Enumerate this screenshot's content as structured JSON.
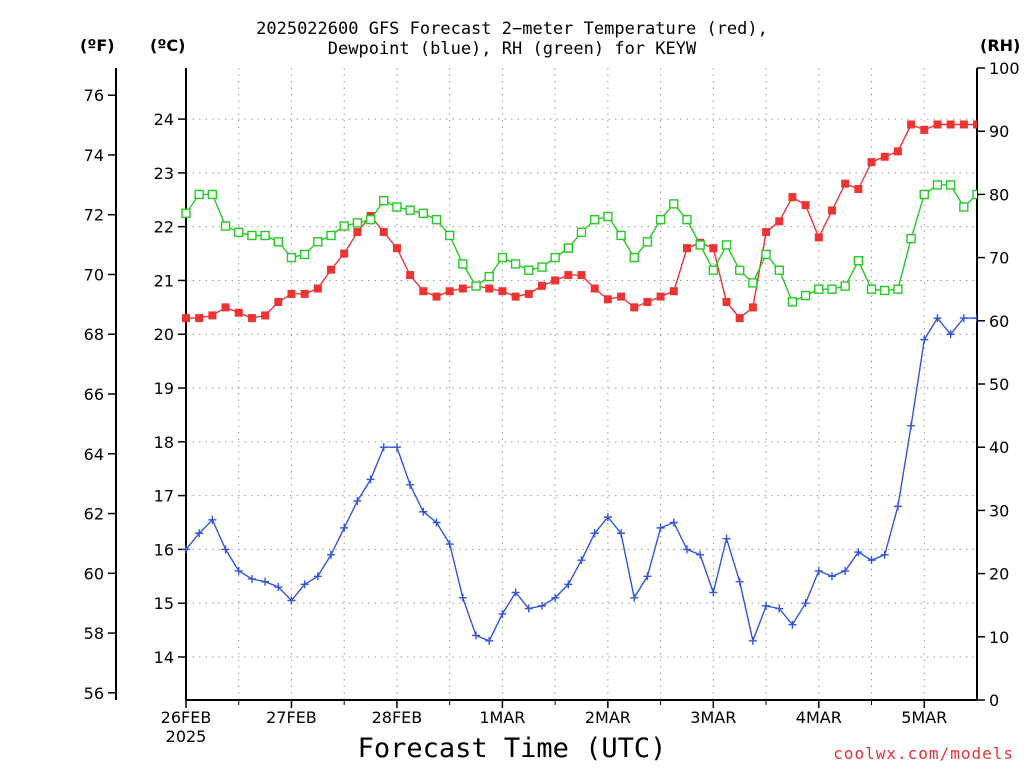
{
  "title_line1": "2025022600 GFS Forecast 2−meter Temperature (red),",
  "title_line2": "Dewpoint (blue), RH (green) for KEYW",
  "unit_f": "(ºF)",
  "unit_c": "(ºC)",
  "unit_rh": "(RH)",
  "x_label": "Forecast Time (UTC)",
  "credit": "coolwx.com/models",
  "colors": {
    "temperature": "#ee3333",
    "dewpoint": "#3355dd",
    "rh": "#22cc22",
    "grid": "#999999"
  },
  "chart_data": {
    "type": "line",
    "x_unit": "forecast hours since 2025-02-26 00 UTC",
    "x_ticks": [
      {
        "hour": 0,
        "label": "26FEB",
        "sub": "2025"
      },
      {
        "hour": 24,
        "label": "27FEB"
      },
      {
        "hour": 48,
        "label": "28FEB"
      },
      {
        "hour": 72,
        "label": "1MAR"
      },
      {
        "hour": 96,
        "label": "2MAR"
      },
      {
        "hour": 120,
        "label": "3MAR"
      },
      {
        "hour": 144,
        "label": "4MAR"
      },
      {
        "hour": 168,
        "label": "5MAR"
      }
    ],
    "xlim": [
      0,
      180
    ],
    "y_left_c": {
      "lim": [
        13.2,
        24.95
      ],
      "ticks": [
        14,
        15,
        16,
        17,
        18,
        19,
        20,
        21,
        22,
        23,
        24
      ]
    },
    "y_left_f": {
      "ticks": [
        56,
        58,
        60,
        62,
        64,
        66,
        68,
        70,
        72,
        74,
        76
      ]
    },
    "y_right_rh": {
      "lim": [
        0,
        100
      ],
      "ticks": [
        0,
        10,
        20,
        30,
        40,
        50,
        60,
        70,
        80,
        90,
        100
      ]
    },
    "series": [
      {
        "name": "Temperature",
        "axis": "c",
        "marker": "filled-square",
        "color": "#ee3333",
        "x": [
          0,
          3,
          6,
          9,
          12,
          15,
          18,
          21,
          24,
          27,
          30,
          33,
          36,
          39,
          42,
          45,
          48,
          51,
          54,
          57,
          60,
          63,
          66,
          69,
          72,
          75,
          78,
          81,
          84,
          87,
          90,
          93,
          96,
          99,
          102,
          105,
          108,
          111,
          114,
          117,
          120,
          123,
          126,
          129,
          132,
          135,
          138,
          141,
          144,
          147,
          150,
          153,
          156,
          159,
          162,
          165,
          168,
          171,
          174,
          177,
          180
        ],
        "y": [
          20.3,
          20.3,
          20.35,
          20.5,
          20.4,
          20.3,
          20.35,
          20.6,
          20.75,
          20.75,
          20.85,
          21.2,
          21.5,
          21.9,
          22.2,
          21.9,
          21.6,
          21.1,
          20.8,
          20.7,
          20.8,
          20.85,
          20.9,
          20.85,
          20.8,
          20.7,
          20.75,
          20.9,
          21.0,
          21.1,
          21.1,
          20.85,
          20.65,
          20.7,
          20.5,
          20.6,
          20.7,
          20.8,
          21.6,
          21.7,
          21.6,
          20.6,
          20.3,
          20.5,
          21.9,
          22.1,
          22.55,
          22.4,
          21.8,
          22.3,
          22.8,
          22.7,
          23.2,
          23.3,
          23.4,
          23.9,
          23.8,
          23.9,
          23.9,
          23.9,
          23.9
        ]
      },
      {
        "name": "Dewpoint",
        "axis": "c",
        "marker": "plus",
        "color": "#3355dd",
        "x": [
          0,
          3,
          6,
          9,
          12,
          15,
          18,
          21,
          24,
          27,
          30,
          33,
          36,
          39,
          42,
          45,
          48,
          51,
          54,
          57,
          60,
          63,
          66,
          69,
          72,
          75,
          78,
          81,
          84,
          87,
          90,
          93,
          96,
          99,
          102,
          105,
          108,
          111,
          114,
          117,
          120,
          123,
          126,
          129,
          132,
          135,
          138,
          141,
          144,
          147,
          150,
          153,
          156,
          159,
          162,
          165,
          168,
          171,
          174,
          177,
          180
        ],
        "y": [
          16.0,
          16.3,
          16.55,
          16.0,
          15.6,
          15.45,
          15.4,
          15.3,
          15.05,
          15.35,
          15.5,
          15.9,
          16.4,
          16.9,
          17.3,
          17.9,
          17.9,
          17.2,
          16.7,
          16.5,
          16.1,
          15.1,
          14.4,
          14.3,
          14.8,
          15.2,
          14.9,
          14.95,
          15.1,
          15.35,
          15.8,
          16.3,
          16.6,
          16.3,
          15.1,
          15.5,
          16.4,
          16.5,
          16.0,
          15.9,
          15.2,
          16.2,
          15.4,
          14.3,
          14.95,
          14.9,
          14.6,
          15.0,
          15.6,
          15.5,
          15.6,
          15.95,
          15.8,
          15.9,
          16.8,
          18.3,
          19.9,
          20.3,
          20.0,
          20.3,
          20.3
        ]
      },
      {
        "name": "RH",
        "axis": "rh",
        "marker": "open-square",
        "color": "#22cc22",
        "x": [
          0,
          3,
          6,
          9,
          12,
          15,
          18,
          21,
          24,
          27,
          30,
          33,
          36,
          39,
          42,
          45,
          48,
          51,
          54,
          57,
          60,
          63,
          66,
          69,
          72,
          75,
          78,
          81,
          84,
          87,
          90,
          93,
          96,
          99,
          102,
          105,
          108,
          111,
          114,
          117,
          120,
          123,
          126,
          129,
          132,
          135,
          138,
          141,
          144,
          147,
          150,
          153,
          156,
          159,
          162,
          165,
          168,
          171,
          174,
          177,
          180
        ],
        "y": [
          77,
          80,
          80,
          75,
          74,
          73.5,
          73.5,
          72.5,
          70,
          70.5,
          72.5,
          73.5,
          75,
          75.5,
          76,
          79,
          78,
          77.5,
          77,
          76,
          73.5,
          69,
          65.5,
          67,
          70,
          69,
          68,
          68.5,
          70,
          71.5,
          74,
          76,
          76.5,
          73.5,
          70,
          72.5,
          76,
          78.5,
          76,
          72,
          68,
          72,
          68,
          66,
          70.5,
          68,
          63,
          64,
          65,
          65,
          65.5,
          69.5,
          65,
          64.8,
          65,
          73,
          80,
          81.5,
          81.5,
          78,
          80
        ]
      }
    ]
  }
}
